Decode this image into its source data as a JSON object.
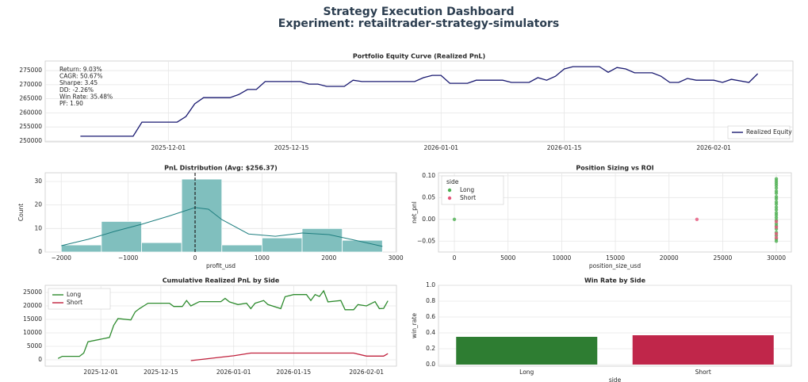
{
  "header": {
    "title": "Strategy Execution Dashboard",
    "subtitle": "Experiment: retailtrader-strategy-simulators"
  },
  "chart_data": [
    {
      "type": "line",
      "title": "Portfolio Equity Curve (Realized PnL)",
      "x": [
        "2025-11-21",
        "2025-11-27",
        "2025-11-28",
        "2025-12-02",
        "2025-12-03",
        "2025-12-04",
        "2025-12-05",
        "2025-12-08",
        "2025-12-09",
        "2025-12-10",
        "2025-12-11",
        "2025-12-12",
        "2025-12-16",
        "2025-12-17",
        "2025-12-18",
        "2025-12-19",
        "2025-12-21",
        "2025-12-22",
        "2025-12-23",
        "2025-12-29",
        "2025-12-30",
        "2025-12-31",
        "2026-01-01",
        "2026-01-02",
        "2026-01-04",
        "2026-01-05",
        "2026-01-08",
        "2026-01-09",
        "2026-01-11",
        "2026-01-12",
        "2026-01-13",
        "2026-01-14",
        "2026-01-15",
        "2026-01-16",
        "2026-01-19",
        "2026-01-20",
        "2026-01-21",
        "2026-01-22",
        "2026-01-23",
        "2026-01-25",
        "2026-01-26",
        "2026-01-27",
        "2026-01-28",
        "2026-01-29",
        "2026-01-30",
        "2026-02-01",
        "2026-02-02",
        "2026-02-03",
        "2026-02-05",
        "2026-02-06"
      ],
      "series": [
        {
          "name": "Realized Equity",
          "color": "#191970",
          "values": [
            251700,
            251700,
            256700,
            256700,
            258700,
            263200,
            265400,
            265400,
            266500,
            268300,
            268300,
            271100,
            271100,
            270200,
            270200,
            269400,
            269400,
            271600,
            271100,
            271100,
            272500,
            273300,
            273300,
            270500,
            270500,
            271600,
            271600,
            270800,
            270800,
            272500,
            271600,
            273000,
            275600,
            276400,
            276400,
            274400,
            276100,
            275600,
            274200,
            274200,
            273000,
            270800,
            270800,
            272200,
            271600,
            271600,
            270800,
            271900,
            270800,
            273900
          ]
        }
      ],
      "xlim": [
        "2025-11-17",
        "2026-02-10"
      ],
      "xticks": [
        "2025-12-01",
        "2025-12-15",
        "2026-01-01",
        "2026-01-15",
        "2026-02-01"
      ],
      "ylim": [
        249700,
        278400
      ],
      "yticks": [
        250000,
        255000,
        260000,
        265000,
        270000,
        275000
      ],
      "grid": true,
      "legend": "lower right",
      "annotation": [
        "Return: 9.03%",
        "CAGR: 50.67%",
        "Sharpe: 3.45",
        "DD: -2.26%",
        "Win Rate: 35.48%",
        "PF: 1.90"
      ]
    },
    {
      "type": "histogram",
      "title": "PnL Distribution (Avg: $256.37)",
      "bins": [
        -2000,
        -1400,
        -800,
        -200,
        400,
        1000,
        1600,
        2200,
        2800
      ],
      "values": [
        3,
        13,
        4,
        31,
        3,
        6,
        10,
        5
      ],
      "color": "#80bfbe",
      "kde_x": [
        -2000,
        -1600,
        -1200,
        -800,
        -400,
        0,
        200,
        400,
        800,
        1200,
        1600,
        2000,
        2400,
        2800
      ],
      "kde_values": [
        2.7,
        5.4,
        8.8,
        11.8,
        15.2,
        18.9,
        18.2,
        13.8,
        7.7,
        6.7,
        8.1,
        7.4,
        5,
        2.4
      ],
      "kde_color": "#1f7f80",
      "vline": 0,
      "xlim": [
        -2240,
        3010
      ],
      "xticks": [
        {
          "value": -2000,
          "label": "−2000"
        },
        {
          "value": -1000,
          "label": "−1000"
        },
        0,
        1000,
        2000,
        3000
      ],
      "ylim": [
        0,
        33.7
      ],
      "yticks": [
        0,
        10,
        20,
        30
      ],
      "x_label": "profit_usd",
      "y_label": "Count",
      "grid": true
    },
    {
      "type": "scatter",
      "title": "Position Sizing vs ROI",
      "series": [
        {
          "name": "Long",
          "color": "#4caf50",
          "x": [
            0,
            30000,
            30000,
            30000,
            30000,
            30000,
            30000,
            30000,
            30000,
            30000,
            30000,
            30000,
            30000,
            30000,
            30000,
            30000,
            30000,
            30000,
            30000,
            30000,
            30000,
            30000,
            30000,
            30000,
            30000
          ],
          "values": [
            0,
            0.093,
            0.088,
            0.083,
            0.078,
            0.072,
            0.065,
            0.06,
            0.052,
            0.047,
            0.04,
            0.035,
            0.028,
            0.022,
            0.015,
            0.01,
            0.004,
            -0.002,
            -0.01,
            -0.015,
            -0.022,
            -0.03,
            -0.037,
            -0.045,
            -0.05
          ]
        },
        {
          "name": "Short",
          "color": "#e5547a",
          "x": [
            22600,
            30000,
            30000,
            30000,
            30000
          ],
          "values": [
            0,
            -0.005,
            -0.018,
            -0.033,
            -0.042
          ]
        }
      ],
      "xlim": [
        -1480,
        31400
      ],
      "xticks": [
        0,
        5000,
        10000,
        15000,
        20000,
        25000,
        30000
      ],
      "ylim": [
        -0.075,
        0.107
      ],
      "yticks": [
        {
          "value": 0.1,
          "label": "0.10"
        },
        0.05,
        {
          "value": 0,
          "label": "0.00"
        },
        {
          "value": -0.05,
          "label": "−0.05"
        }
      ],
      "x_label": "position_size_usd",
      "y_label": "net_pnl",
      "legend": "upper left",
      "legend_title": "side",
      "grid": true
    },
    {
      "type": "line",
      "title": "Cumulative Realized PnL by Side",
      "series": [
        {
          "name": "Long",
          "color": "#2e8b2e",
          "x": [
            "2025-11-21",
            "2025-11-22",
            "2025-11-26",
            "2025-11-27",
            "2025-11-28",
            "2025-12-03",
            "2025-12-04",
            "2025-12-05",
            "2025-12-08",
            "2025-12-09",
            "2025-12-10",
            "2025-12-11",
            "2025-12-12",
            "2025-12-17",
            "2025-12-18",
            "2025-12-20",
            "2025-12-21",
            "2025-12-22",
            "2025-12-24",
            "2025-12-29",
            "2025-12-30",
            "2025-12-31",
            "2026-01-02",
            "2026-01-04",
            "2026-01-05",
            "2026-01-06",
            "2026-01-08",
            "2026-01-09",
            "2026-01-12",
            "2026-01-13",
            "2026-01-15",
            "2026-01-18",
            "2026-01-19",
            "2026-01-20",
            "2026-01-21",
            "2026-01-22",
            "2026-01-23",
            "2026-01-26",
            "2026-01-27",
            "2026-01-29",
            "2026-01-30",
            "2026-02-01",
            "2026-02-03",
            "2026-02-04",
            "2026-02-05",
            "2026-02-06"
          ],
          "values": [
            500,
            1300,
            1300,
            2500,
            6700,
            8300,
            12800,
            15300,
            14800,
            17800,
            19000,
            20000,
            21000,
            21000,
            19800,
            19800,
            22000,
            20000,
            21600,
            21600,
            22800,
            21500,
            20500,
            21000,
            19000,
            21000,
            22000,
            20500,
            19000,
            23400,
            24200,
            24200,
            22000,
            24200,
            23500,
            25600,
            21500,
            22000,
            18600,
            18600,
            20500,
            20000,
            21600,
            19000,
            19100,
            21900
          ]
        },
        {
          "name": "Short",
          "color": "#c0203c",
          "x": [
            "2025-12-22",
            "2026-01-01",
            "2026-01-05",
            "2026-01-29",
            "2026-02-01",
            "2026-02-05",
            "2026-02-06"
          ],
          "values": [
            -300,
            1500,
            2500,
            2500,
            1400,
            1400,
            2300
          ]
        }
      ],
      "xlim": [
        "2025-11-18",
        "2026-02-08"
      ],
      "xticks": [
        "2025-12-01",
        "2025-12-15",
        "2026-01-01",
        "2026-01-15",
        "2026-02-01"
      ],
      "ylim": [
        -2350,
        27650
      ],
      "yticks": [
        0,
        5000,
        10000,
        15000,
        20000,
        25000
      ],
      "grid": true,
      "legend": "upper left"
    },
    {
      "type": "bar",
      "title": "Win Rate by Side",
      "categories": [
        "Long",
        "Short"
      ],
      "values": [
        0.35,
        0.37
      ],
      "colors": [
        "#2e7d32",
        "#c0264a"
      ],
      "ylim": [
        -0.02,
        1.0
      ],
      "yticks": [
        {
          "value": 0,
          "label": "0.0"
        },
        0.2,
        0.4,
        0.6,
        0.8,
        {
          "value": 1,
          "label": "1.0"
        }
      ],
      "x_label": "side",
      "y_label": "win_rate",
      "grid": true
    }
  ]
}
